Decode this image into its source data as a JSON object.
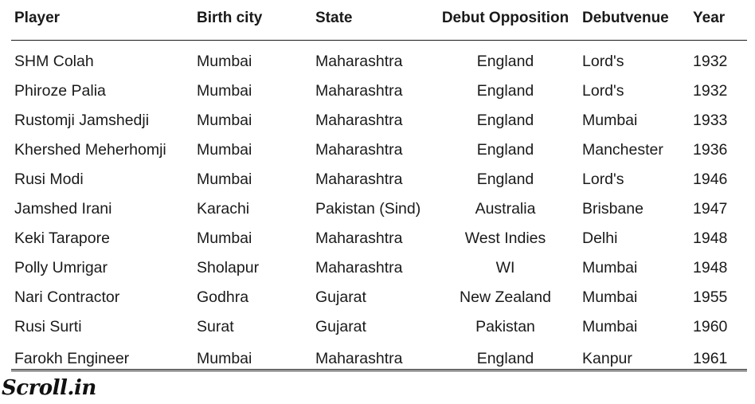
{
  "table": {
    "headers": [
      "Player",
      "Birth city",
      "State",
      "Debut Opposition",
      "Debutvenue",
      "Year"
    ],
    "rows": [
      [
        "SHM Colah",
        "Mumbai",
        "Maharashtra",
        "England",
        "Lord's",
        "1932"
      ],
      [
        "Phiroze Palia",
        "Mumbai",
        "Maharashtra",
        "England",
        "Lord's",
        "1932"
      ],
      [
        "Rustomji Jamshedji",
        "Mumbai",
        "Maharashtra",
        "England",
        "Mumbai",
        "1933"
      ],
      [
        "Khershed Meherhomji",
        "Mumbai",
        "Maharashtra",
        "England",
        "Manchester",
        "1936"
      ],
      [
        "Rusi Modi",
        "Mumbai",
        "Maharashtra",
        "England",
        "Lord's",
        "1946"
      ],
      [
        "Jamshed Irani",
        "Karachi",
        "Pakistan (Sind)",
        "Australia",
        "Brisbane",
        "1947"
      ],
      [
        "Keki Tarapore",
        "Mumbai",
        "Maharashtra",
        "West Indies",
        "Delhi",
        "1948"
      ],
      [
        "Polly Umrigar",
        "Sholapur",
        "Maharashtra",
        "WI",
        "Mumbai",
        "1948"
      ],
      [
        "Nari Contractor",
        "Godhra",
        "Gujarat",
        "New Zealand",
        "Mumbai",
        "1955"
      ],
      [
        "Rusi Surti",
        "Surat",
        "Gujarat",
        "Pakistan",
        "Mumbai",
        "1960"
      ],
      [
        "Farokh Engineer",
        "Mumbai",
        "Maharashtra",
        "England",
        "Kanpur",
        "1961"
      ]
    ]
  },
  "logo": {
    "text": "Scroll.in"
  }
}
